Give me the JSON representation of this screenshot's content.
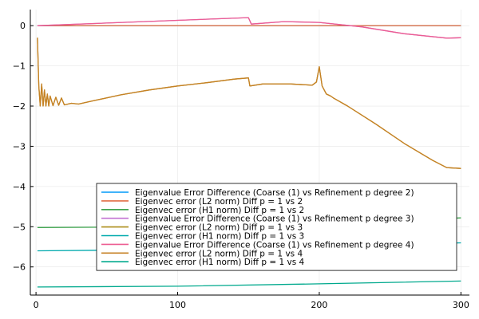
{
  "chart_data": {
    "type": "line",
    "title": "",
    "xlabel": "",
    "ylabel": "",
    "xlim": [
      -4,
      306
    ],
    "ylim": [
      -6.7,
      0.4
    ],
    "xticks": [
      0,
      100,
      200,
      300
    ],
    "yticks": [
      0,
      -1,
      -2,
      -3,
      -4,
      -5,
      -6
    ],
    "ytick_labels": [
      "0",
      "−1",
      "−2",
      "−3",
      "−4",
      "−5",
      "−6"
    ],
    "grid": true,
    "legend_position": "bottom-right",
    "series": [
      {
        "name": "Eigenvalue Error Difference (Coarse (1) vs Refinement p degree 2)",
        "color": "#009af9",
        "points": [
          [
            1,
            0
          ],
          [
            300,
            0
          ]
        ]
      },
      {
        "name": "Eigenvec error (L2 norm) Diff p = 1 vs 2",
        "color": "#e26f46",
        "points": [
          [
            1,
            0
          ],
          [
            300,
            0
          ]
        ]
      },
      {
        "name": "Eigenvec error (H1 norm) Diff p = 1 vs 2",
        "color": "#3da44d",
        "points": [
          [
            1,
            -5.02
          ],
          [
            100,
            -5.0
          ],
          [
            200,
            -4.93
          ],
          [
            300,
            -4.78
          ]
        ]
      },
      {
        "name": "Eigenvalue Error Difference (Coarse (1) vs Refinement p degree 3)",
        "color": "#c271d2",
        "points": [
          [
            1,
            0
          ],
          [
            150,
            0.2
          ],
          [
            152,
            0.04
          ],
          [
            175,
            0.1
          ],
          [
            200,
            0.08
          ],
          [
            230,
            -0.03
          ],
          [
            260,
            -0.2
          ],
          [
            290,
            -0.31
          ],
          [
            300,
            -0.3
          ]
        ]
      },
      {
        "name": "Eigenvec error (L2 norm) Diff p = 1 vs 3",
        "color": "#ac8e18",
        "points": [
          [
            1,
            -0.3
          ],
          [
            2,
            -1.5
          ],
          [
            3,
            -2
          ],
          [
            4,
            -1.45
          ],
          [
            5,
            -2
          ],
          [
            6,
            -1.6
          ],
          [
            7,
            -2
          ],
          [
            8,
            -1.7
          ],
          [
            9,
            -2
          ],
          [
            10,
            -1.75
          ],
          [
            12,
            -1.99
          ],
          [
            14,
            -1.78
          ],
          [
            16,
            -1.98
          ],
          [
            18,
            -1.8
          ],
          [
            20,
            -1.97
          ],
          [
            25,
            -1.93
          ],
          [
            30,
            -1.95
          ],
          [
            40,
            -1.87
          ],
          [
            60,
            -1.72
          ],
          [
            80,
            -1.6
          ],
          [
            100,
            -1.5
          ],
          [
            120,
            -1.42
          ],
          [
            140,
            -1.33
          ],
          [
            150,
            -1.3
          ],
          [
            151,
            -1.5
          ],
          [
            160,
            -1.45
          ],
          [
            180,
            -1.45
          ],
          [
            195,
            -1.48
          ],
          [
            198,
            -1.4
          ],
          [
            200,
            -1.02
          ],
          [
            202,
            -1.5
          ],
          [
            205,
            -1.7
          ],
          [
            208,
            -1.75
          ],
          [
            210,
            -1.8
          ],
          [
            220,
            -2.0
          ],
          [
            240,
            -2.45
          ],
          [
            260,
            -2.93
          ],
          [
            280,
            -3.35
          ],
          [
            290,
            -3.53
          ],
          [
            300,
            -3.55
          ]
        ]
      },
      {
        "name": "Eigenvec error (H1 norm) Diff p = 1 vs 3",
        "color": "#00a9ad",
        "points": [
          [
            1,
            -5.6
          ],
          [
            100,
            -5.57
          ],
          [
            200,
            -5.5
          ],
          [
            300,
            -5.4
          ]
        ]
      },
      {
        "name": "Eigenvalue Error Difference (Coarse (1) vs Refinement p degree 4)",
        "color": "#ed5d92",
        "points": [
          [
            1,
            0
          ],
          [
            150,
            0.2
          ],
          [
            152,
            0.04
          ],
          [
            175,
            0.1
          ],
          [
            200,
            0.08
          ],
          [
            230,
            -0.03
          ],
          [
            260,
            -0.2
          ],
          [
            290,
            -0.31
          ],
          [
            300,
            -0.3
          ]
        ]
      },
      {
        "name": "Eigenvec error (L2 norm) Diff p = 1 vs 4",
        "color": "#c68125",
        "points": [
          [
            1,
            -0.3
          ],
          [
            2,
            -1.5
          ],
          [
            3,
            -2
          ],
          [
            4,
            -1.45
          ],
          [
            5,
            -2
          ],
          [
            6,
            -1.6
          ],
          [
            7,
            -2
          ],
          [
            8,
            -1.7
          ],
          [
            9,
            -2
          ],
          [
            10,
            -1.75
          ],
          [
            12,
            -1.99
          ],
          [
            14,
            -1.78
          ],
          [
            16,
            -1.98
          ],
          [
            18,
            -1.8
          ],
          [
            20,
            -1.97
          ],
          [
            25,
            -1.93
          ],
          [
            30,
            -1.95
          ],
          [
            40,
            -1.87
          ],
          [
            60,
            -1.72
          ],
          [
            80,
            -1.6
          ],
          [
            100,
            -1.5
          ],
          [
            120,
            -1.42
          ],
          [
            140,
            -1.33
          ],
          [
            150,
            -1.3
          ],
          [
            151,
            -1.5
          ],
          [
            160,
            -1.45
          ],
          [
            180,
            -1.45
          ],
          [
            195,
            -1.48
          ],
          [
            198,
            -1.4
          ],
          [
            200,
            -1.02
          ],
          [
            202,
            -1.5
          ],
          [
            205,
            -1.7
          ],
          [
            208,
            -1.75
          ],
          [
            210,
            -1.8
          ],
          [
            220,
            -2.0
          ],
          [
            240,
            -2.45
          ],
          [
            260,
            -2.93
          ],
          [
            280,
            -3.35
          ],
          [
            290,
            -3.53
          ],
          [
            300,
            -3.55
          ]
        ]
      },
      {
        "name": "Eigenvec error (H1 norm) Diff p = 1 vs 4",
        "color": "#00a98d",
        "points": [
          [
            1,
            -6.5
          ],
          [
            100,
            -6.48
          ],
          [
            200,
            -6.42
          ],
          [
            300,
            -6.35
          ]
        ]
      }
    ]
  }
}
